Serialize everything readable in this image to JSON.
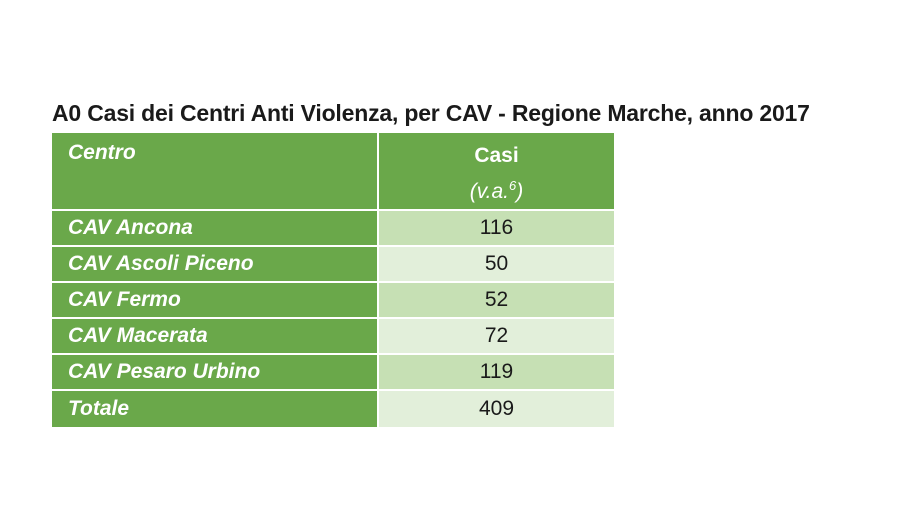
{
  "title": "A0 Casi dei Centri Anti Violenza, per CAV - Regione Marche, anno 2017",
  "table": {
    "header": {
      "col1": "Centro",
      "col2_line1": "Casi",
      "col2_line2": "(v.a.",
      "col2_sup": "6",
      "col2_close": ")"
    },
    "rows": [
      {
        "name": "CAV Ancona",
        "value": "116"
      },
      {
        "name": "CAV Ascoli Piceno",
        "value": "50"
      },
      {
        "name": "CAV Fermo",
        "value": "52"
      },
      {
        "name": "CAV Macerata",
        "value": "72"
      },
      {
        "name": "CAV Pesaro Urbino",
        "value": "119"
      }
    ],
    "total": {
      "name": "Totale",
      "value": "409"
    }
  },
  "colors": {
    "header_green": "#6aa84a",
    "row_light": "#c6e0b4",
    "row_lighter": "#e2efda"
  }
}
